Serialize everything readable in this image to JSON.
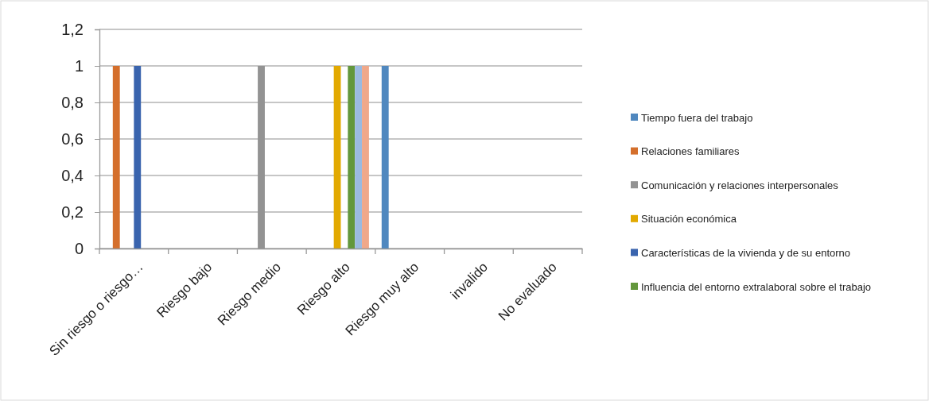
{
  "chart_data": {
    "type": "bar",
    "categories": [
      "Sin riesgo o riesgo…",
      "Riesgo bajo",
      "Riesgo medio",
      "Riesgo alto",
      "Riesgo muy alto",
      "invalido",
      "No evaluado"
    ],
    "series": [
      {
        "name": "Tiempo fuera del trabajo",
        "color": "#5088bf",
        "values": [
          0,
          0,
          0,
          0,
          1,
          0,
          0
        ]
      },
      {
        "name": "Relaciones familiares",
        "color": "#d46f2c",
        "values": [
          1,
          0,
          0,
          0,
          0,
          0,
          0
        ]
      },
      {
        "name": "Comunicación y relaciones interpersonales",
        "color": "#939393",
        "values": [
          0,
          0,
          1,
          0,
          0,
          0,
          0
        ]
      },
      {
        "name": "Situación económica",
        "color": "#e2a900",
        "values": [
          0,
          0,
          0,
          1,
          0,
          0,
          0
        ]
      },
      {
        "name": "Características de la vivienda y de su entorno",
        "color": "#3a64ae",
        "values": [
          1,
          0,
          0,
          0,
          0,
          0,
          0
        ]
      },
      {
        "name": "Influencia del entorno extralaboral sobre el trabajo",
        "color": "#63973c",
        "values": [
          0,
          0,
          0,
          1,
          0,
          0,
          0
        ]
      },
      {
        "color": "#9bbae0",
        "values": [
          0,
          0,
          0,
          1,
          0,
          0,
          0
        ]
      },
      {
        "color": "#f0a88a",
        "values": [
          0,
          0,
          0,
          1,
          0,
          0,
          0
        ]
      }
    ],
    "ylim": [
      0,
      1.2
    ],
    "yticks": [
      0,
      {
        "value": 0.2,
        "label": "0,2"
      },
      {
        "value": 0.4,
        "label": "0,4"
      },
      {
        "value": 0.6,
        "label": "0,6"
      },
      {
        "value": 0.8,
        "label": "0,8"
      },
      1,
      {
        "value": 1.2,
        "label": "1,2"
      }
    ],
    "grid": "y",
    "legend": "right"
  }
}
